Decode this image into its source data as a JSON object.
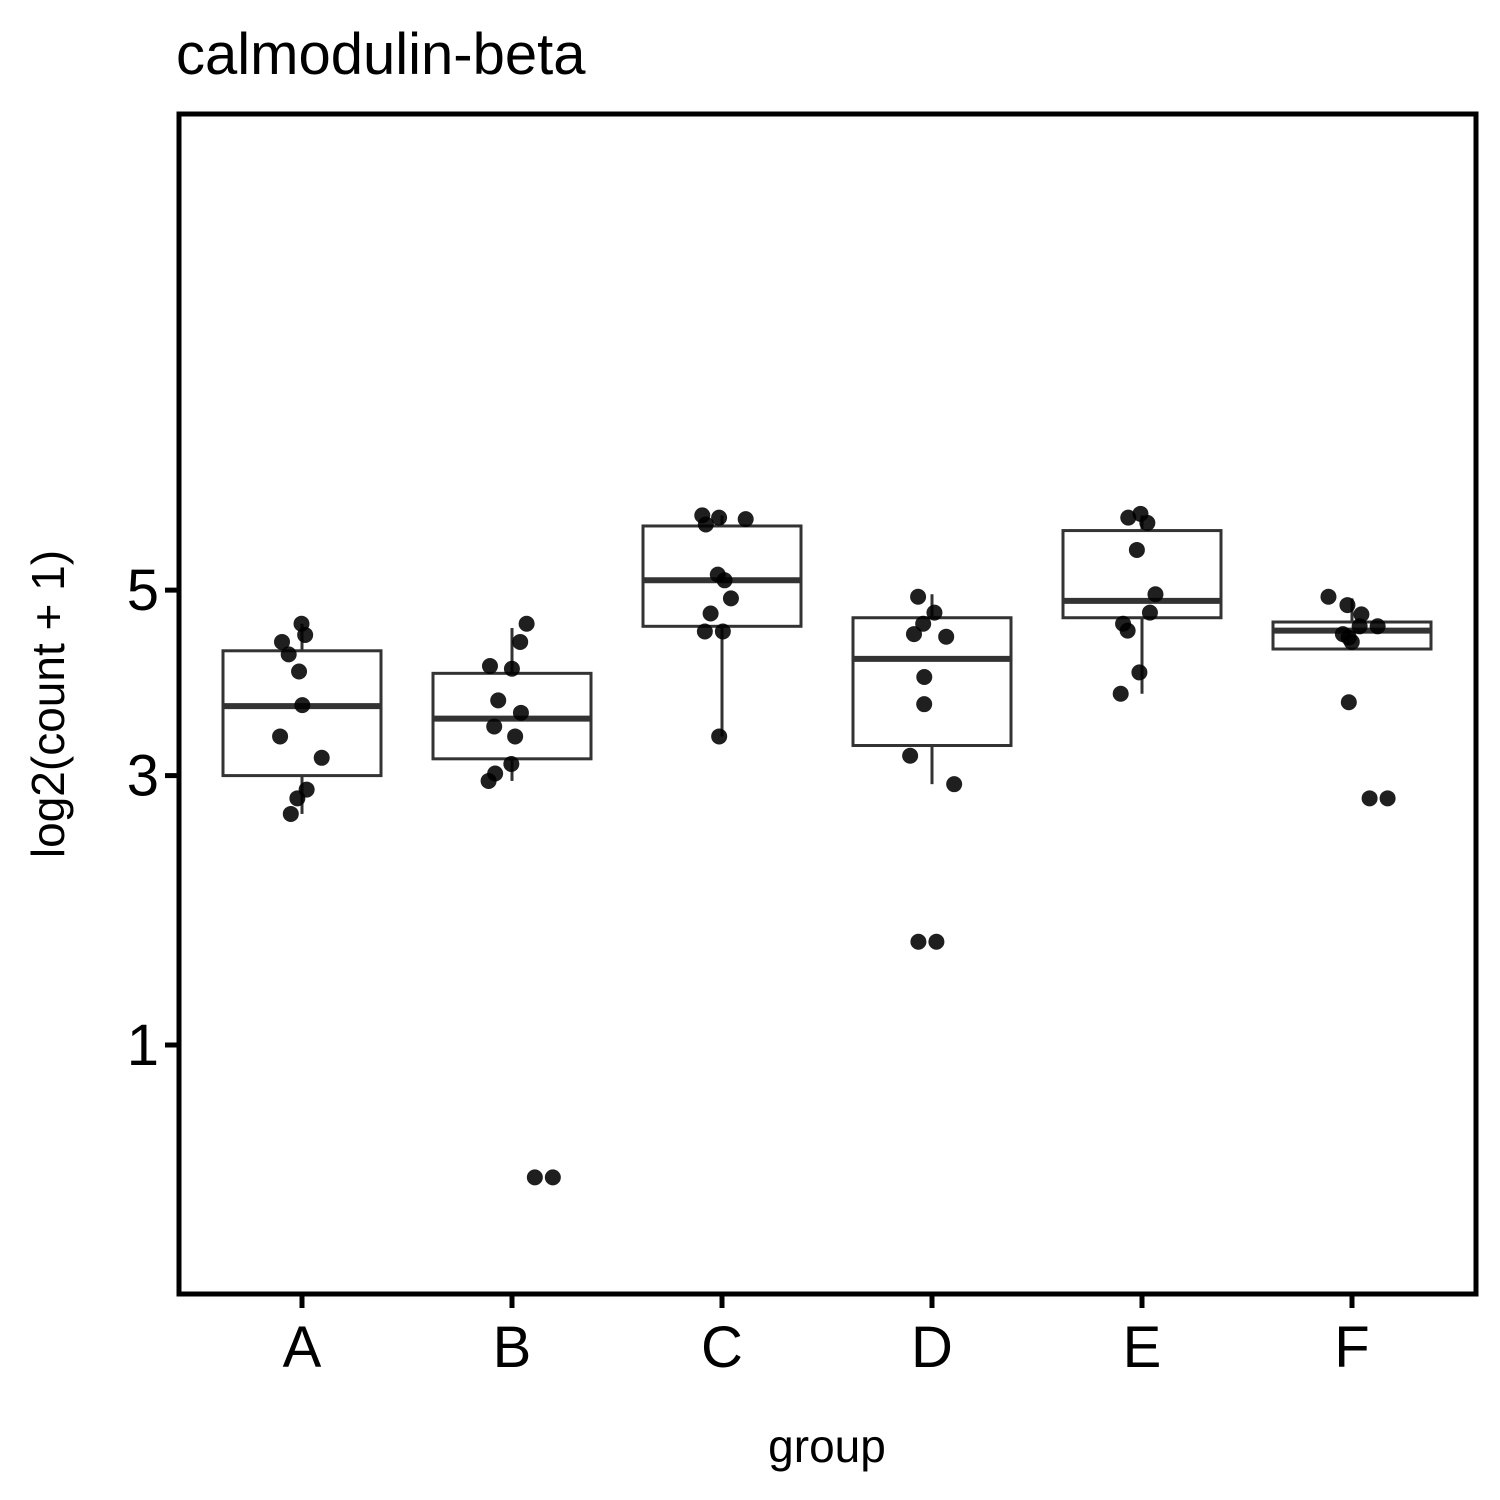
{
  "chart_data": {
    "type": "box",
    "title": "calmodulin-beta",
    "xlabel": "group",
    "ylabel": "log2(count + 1)",
    "y_scale": "sqrt",
    "ylim": [
      0,
      6.2
    ],
    "y_ticks": [
      1,
      3,
      5
    ],
    "grid": false,
    "legend": "none",
    "categories": [
      "A",
      "B",
      "C",
      "D",
      "E",
      "F"
    ],
    "boxes": [
      {
        "group": "A",
        "whisker_low": 2.65,
        "q1": 3.0,
        "median": 3.69,
        "q3": 4.29,
        "whisker_high": 4.6
      },
      {
        "group": "B",
        "whisker_low": 2.95,
        "q1": 3.16,
        "median": 3.56,
        "q3": 4.04,
        "whisker_high": 4.55
      },
      {
        "group": "C",
        "whisker_low": 3.38,
        "q1": 4.57,
        "median": 5.12,
        "q3": 5.81,
        "whisker_high": 5.95
      },
      {
        "group": "D",
        "whisker_low": 2.92,
        "q1": 3.29,
        "median": 4.2,
        "q3": 4.67,
        "whisker_high": 4.95
      },
      {
        "group": "E",
        "whisker_low": 3.82,
        "q1": 4.67,
        "median": 4.87,
        "q3": 5.75,
        "whisker_high": 5.95
      },
      {
        "group": "F",
        "whisker_low": 4.31,
        "q1": 4.31,
        "median": 4.52,
        "q3": 4.62,
        "whisker_high": 4.9
      }
    ],
    "points": [
      {
        "group": "A",
        "values": [
          4.6,
          4.47,
          4.39,
          4.25,
          4.06,
          3.7,
          3.38,
          3.17,
          2.87,
          2.79,
          2.65
        ]
      },
      {
        "group": "B",
        "values": [
          4.6,
          4.39,
          4.12,
          4.09,
          3.75,
          3.62,
          3.48,
          3.38,
          3.11,
          3.02,
          2.95,
          0.41,
          0.41
        ]
      },
      {
        "group": "C",
        "values": [
          5.95,
          5.92,
          5.9,
          5.83,
          5.19,
          5.12,
          4.9,
          4.72,
          4.51,
          4.51,
          3.38
        ]
      },
      {
        "group": "D",
        "values": [
          4.92,
          4.73,
          4.6,
          4.48,
          4.45,
          4.0,
          3.71,
          3.19,
          2.92,
          1.64,
          1.64
        ]
      },
      {
        "group": "E",
        "values": [
          5.97,
          5.92,
          5.85,
          5.5,
          4.95,
          4.73,
          4.6,
          4.52,
          4.05,
          3.82
        ]
      },
      {
        "group": "F",
        "values": [
          4.92,
          4.82,
          4.71,
          4.57,
          4.57,
          4.48,
          4.44,
          4.39,
          3.73,
          2.79,
          2.79
        ]
      }
    ]
  }
}
